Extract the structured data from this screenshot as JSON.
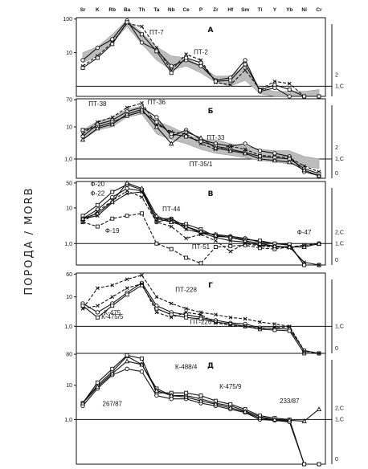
{
  "chart_data": {
    "type": "line",
    "ylabel": "ПОРОДА / MORB",
    "elements": [
      "Sr",
      "K",
      "Rb",
      "Ba",
      "Th",
      "Ta",
      "Nb",
      "Ce",
      "P",
      "Zr",
      "Hf",
      "Sm",
      "Ti",
      "Y",
      "Yb",
      "Ni",
      "Cr"
    ],
    "panels": [
      {
        "label": "А",
        "yticks": [
          "100",
          "10"
        ],
        "right_ticks": [
          "2",
          "1,С"
        ],
        "band": {
          "upper": [
            10,
            15,
            35,
            95,
            40,
            15,
            8,
            7,
            4,
            2,
            2,
            4,
            0.9,
            0.7,
            0.7,
            0.7,
            0.8
          ],
          "lower": [
            5,
            8,
            20,
            60,
            18,
            6,
            3,
            4,
            2.5,
            1.3,
            1,
            1.5,
            0.6,
            0.4,
            0.45,
            0.45,
            0.5
          ]
        },
        "series": [
          {
            "name": "ПТ-7",
            "values": [
              6,
              14,
              25,
              90,
              20,
              12,
              4,
              6,
              4,
              1.5,
              1.8,
              6,
              0.7,
              0.9,
              0.5,
              0.35,
              0.3
            ],
            "dash": false,
            "marker": "o"
          },
          {
            "name": "ПТ-2",
            "values": [
              4,
              8,
              20,
              75,
              60,
              14,
              3,
              9,
              6,
              1.3,
              1.1,
              3,
              0.8,
              1.4,
              1.2,
              0.25,
              0.18
            ],
            "dash": true,
            "marker": "x"
          },
          {
            "name": "",
            "values": [
              3.5,
              7,
              18,
              80,
              35,
              11,
              2.5,
              7,
              5,
              1.4,
              1.5,
              4.5,
              0.75,
              1.1,
              0.8,
              0.3,
              0.22
            ],
            "dash": false,
            "marker": "s"
          }
        ],
        "annotations": [
          {
            "text": "ПТ-7",
            "near": [
              5,
              35
            ]
          },
          {
            "text": "ПТ-2",
            "near": [
              8,
              9
            ]
          }
        ]
      },
      {
        "label": "Б",
        "yticks": [
          "70",
          "10",
          "1,0"
        ],
        "right_ticks": [
          "2",
          "1,С",
          "0"
        ],
        "band": {
          "upper": [
            8,
            15,
            20,
            35,
            45,
            15,
            10,
            6,
            4,
            4,
            3,
            2.5,
            2,
            1.8,
            1.8,
            1.2,
            1
          ],
          "lower": [
            4,
            8,
            10,
            20,
            25,
            6,
            4,
            3,
            2,
            1.5,
            1.3,
            1.1,
            0.9,
            0.8,
            0.7,
            0.6,
            0.5
          ]
        },
        "series": [
          {
            "name": "ПТ-38",
            "values": [
              5,
              12,
              16,
              30,
              40,
              20,
              5,
              8,
              4,
              3,
              2.5,
              3,
              1.8,
              1.5,
              1.2,
              0.4,
              0.3
            ],
            "dash": false,
            "marker": "o"
          },
          {
            "name": "ПТ-36",
            "values": [
              6,
              14,
              20,
              40,
              55,
              12,
              7,
              6,
              3,
              2,
              2.5,
              2,
              1.3,
              1.2,
              1.1,
              0.6,
              0.4
            ],
            "dash": true,
            "marker": "x"
          },
          {
            "name": "ПТ-33",
            "values": [
              8,
              10,
              14,
              22,
              30,
              14,
              6,
              5,
              3.5,
              2.5,
              2,
              1.6,
              1.2,
              1.1,
              1,
              0.5,
              0.35
            ],
            "dash": false,
            "marker": "s"
          },
          {
            "name": "ПТ-35/1",
            "values": [
              4,
              9,
              12,
              25,
              35,
              10,
              3,
              7,
              4.5,
              2.2,
              1.8,
              1.5,
              1,
              0.9,
              0.8,
              0.45,
              0.3
            ],
            "dash": false,
            "marker": "^"
          }
        ],
        "annotations": [
          {
            "text": "ПТ-38",
            "near": [
              1,
              45
            ]
          },
          {
            "text": "ПТ-36",
            "near": [
              5,
              50
            ]
          },
          {
            "text": "ПТ-33",
            "near": [
              9,
              4
            ]
          },
          {
            "text": "ПТ-35/1",
            "near": [
              8,
              0.6
            ]
          }
        ]
      },
      {
        "label": "В",
        "yticks": [
          "50",
          "10",
          "1,0"
        ],
        "right_ticks": [
          "2,С",
          "1,С",
          "0"
        ],
        "series": [
          {
            "name": "Ф-20",
            "values": [
              5,
              9,
              20,
              35,
              30,
              4,
              5,
              3,
              2,
              1.8,
              1.6,
              1.4,
              1.1,
              1,
              0.9,
              0.2,
              0.15
            ],
            "dash": false,
            "marker": "o"
          },
          {
            "name": "Ф-22",
            "values": [
              6,
              12,
              28,
              45,
              32,
              5,
              4,
              3.5,
              2.5,
              1.6,
              1.5,
              1.3,
              1.2,
              1,
              0.95,
              0.25,
              0.2
            ],
            "dash": false,
            "marker": "s"
          },
          {
            "name": "Ф-19",
            "values": [
              4,
              3,
              5,
              6,
              7,
              1,
              0.7,
              0.4,
              0.28,
              0.8,
              0.85,
              0.9,
              0.75,
              0.7,
              0.8,
              0.9,
              1
            ],
            "dash": true,
            "marker": "s"
          },
          {
            "name": "ПТ-44",
            "values": [
              5,
              6,
              14,
              25,
              28,
              5,
              5,
              2.5,
              2,
              1.5,
              1.2,
              1.1,
              0.9,
              0.85,
              0.8,
              0.3,
              0.25
            ],
            "dash": false,
            "marker": "x"
          },
          {
            "name": "ПТ-51",
            "values": [
              4,
              8,
              16,
              30,
              20,
              4,
              3,
              1.4,
              1.8,
              1.2,
              0.6,
              1,
              0.85,
              0.8,
              0.75,
              0.9,
              0.95
            ],
            "dash": true,
            "marker": "x"
          },
          {
            "name": "Ф-47",
            "values": [
              5,
              7,
              15,
              50,
              35,
              6,
              4,
              3,
              2.2,
              1.7,
              1.5,
              1.2,
              1,
              0.85,
              0.8,
              0.8,
              1
            ],
            "dash": false,
            "marker": "^"
          }
        ],
        "annotations": [
          {
            "text": "Ф-20",
            "near": [
              1,
              40
            ]
          },
          {
            "text": "Ф-22",
            "near": [
              1,
              22
            ]
          },
          {
            "text": "Ф-19",
            "near": [
              2,
              2
            ]
          },
          {
            "text": "ПТ-44",
            "near": [
              6,
              8
            ]
          },
          {
            "text": "ПТ-51",
            "near": [
              8,
              0.7
            ]
          },
          {
            "text": "Ф-47",
            "near": [
              15,
              1.8
            ]
          }
        ]
      },
      {
        "label": "Г",
        "yticks": [
          "60",
          "10",
          "1,0"
        ],
        "right_ticks": [
          "1,С",
          "0"
        ],
        "series": [
          {
            "name": "ПТ-228",
            "values": [
              4,
              20,
              25,
              40,
              55,
              10,
              6,
              4,
              3,
              2.5,
              2,
              1.8,
              1.4,
              1.2,
              1,
              0.15,
              0.12
            ],
            "dash": true,
            "marker": "x"
          },
          {
            "name": "К-475",
            "values": [
              6,
              3,
              6,
              14,
              30,
              5,
              3,
              2.5,
              2,
              1.6,
              1.3,
              1.2,
              0.9,
              0.85,
              0.8,
              0.15,
              0.12
            ],
            "dash": false,
            "marker": "o"
          },
          {
            "name": "К-475/5",
            "values": [
              5,
              2,
              5,
              12,
              25,
              4,
              2.5,
              2,
              1.8,
              1.4,
              1.2,
              1,
              0.8,
              0.75,
              0.7,
              0.12,
              0.1
            ],
            "dash": false,
            "marker": "s"
          },
          {
            "name": "ПТ-226",
            "values": [
              4,
              5,
              10,
              20,
              28,
              3,
              2,
              3,
              2.5,
              1.3,
              1.1,
              1,
              0.85,
              0.9,
              0.95,
              0.14,
              0.11
            ],
            "dash": true,
            "marker": "x"
          }
        ],
        "annotations": [
          {
            "text": "ПТ-228",
            "near": [
              7,
              15
            ]
          },
          {
            "text": "К-475",
            "near": [
              2,
              2.5
            ]
          },
          {
            "text": "К-475/5",
            "near": [
              2,
              1.8
            ]
          },
          {
            "text": "ПТ-226",
            "near": [
              8,
              1.2
            ]
          }
        ]
      },
      {
        "label": "Д",
        "yticks": [
          "80",
          "10",
          "1,0"
        ],
        "right_ticks": [
          "2,С",
          "1,С",
          "0"
        ],
        "series": [
          {
            "name": "К-488/4",
            "values": [
              3,
              10,
              25,
              70,
              40,
              8,
              5,
              5,
              4,
              3,
              2.5,
              1.8,
              1.2,
              1,
              0.9,
              0.05,
              0.05
            ],
            "dash": false,
            "marker": "s"
          },
          {
            "name": "К-475/9",
            "values": [
              3,
              12,
              30,
              75,
              60,
              6,
              6,
              6,
              5,
              3.5,
              2.8,
              2,
              1.3,
              1.1,
              1,
              0.05,
              0.05
            ],
            "dash": false,
            "marker": "s"
          },
          {
            "name": "267/87",
            "values": [
              2.5,
              8,
              20,
              30,
              25,
              5,
              4,
              4,
              3,
              2.5,
              2,
              1.6,
              1,
              0.95,
              0.85,
              0.05,
              0.05
            ],
            "dash": false,
            "marker": "o"
          },
          {
            "name": "233/87",
            "values": [
              3,
              9,
              22,
              50,
              40,
              7,
              5,
              4.5,
              3.5,
              2.8,
              2.2,
              1.7,
              1.1,
              1,
              0.95,
              0.9,
              2
            ],
            "dash": false,
            "marker": "^"
          }
        ],
        "annotations": [
          {
            "text": "К-488/4",
            "near": [
              7,
              30
            ]
          },
          {
            "text": "К-475/9",
            "near": [
              10,
              8
            ]
          },
          {
            "text": "267/87",
            "near": [
              2,
              2.5
            ]
          },
          {
            "text": "233/87",
            "near": [
              14,
              3
            ]
          }
        ]
      }
    ]
  }
}
